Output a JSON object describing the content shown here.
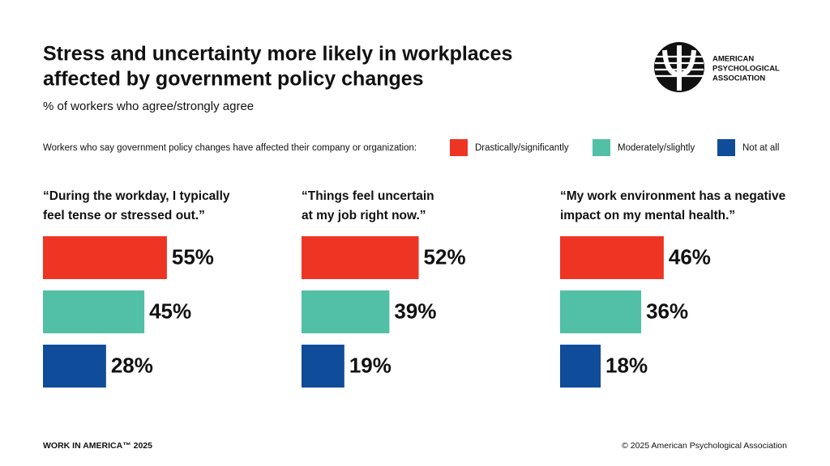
{
  "title": [
    "Stress and uncertainty more likely in workplaces",
    "affected by government policy changes"
  ],
  "subtitle": "% of workers who agree/strongly agree",
  "legend": {
    "label": "Workers who say government policy changes have affected their company or organization:",
    "items": [
      {
        "name": "Drastically/significantly",
        "color": "#ee3524"
      },
      {
        "name": "Moderately/slightly",
        "color": "#52c0a6"
      },
      {
        "name": "Not at all",
        "color": "#0f4c9a"
      }
    ]
  },
  "logo": [
    "AMERICAN",
    "PSYCHOLOGICAL",
    "ASSOCIATION"
  ],
  "footer": {
    "left": "WORK IN AMERICA™ 2025",
    "right": "© 2025 American Psychological Association"
  },
  "chart_data": [
    {
      "type": "bar",
      "title": [
        "“During the workday, I typically",
        " feel tense or stressed out.”"
      ],
      "values": [
        55,
        45,
        28
      ],
      "value_labels": [
        "55%",
        "45%",
        "28%"
      ]
    },
    {
      "type": "bar",
      "title": [
        "“Things feel uncertain",
        " at my job right now.”"
      ],
      "values": [
        52,
        39,
        19
      ],
      "value_labels": [
        "52%",
        "39%",
        "19%"
      ]
    },
    {
      "type": "bar",
      "title": [
        "“My work environment has a negative",
        " impact on my mental health.”"
      ],
      "values": [
        46,
        36,
        18
      ],
      "value_labels": [
        "46%",
        "36%",
        "18%"
      ]
    }
  ]
}
